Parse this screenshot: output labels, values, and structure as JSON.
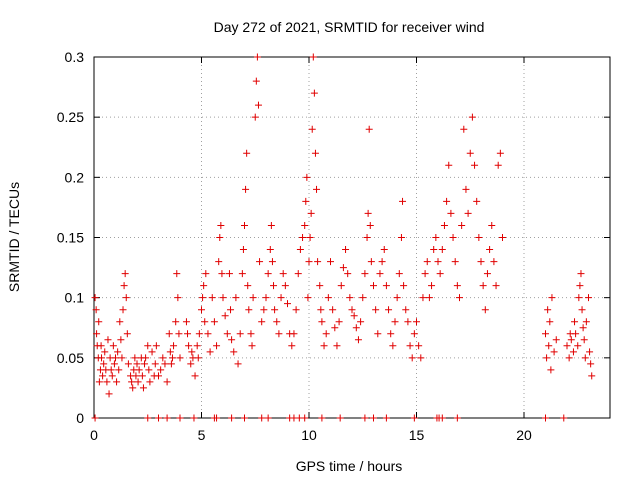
{
  "chart_data": {
    "type": "scatter",
    "title": "Day 272 of 2021, SRMTID for receiver wind",
    "xlabel": "GPS time / hours",
    "ylabel": "SRMTID / TECUs",
    "xlim": [
      0,
      24
    ],
    "ylim": [
      0,
      0.3
    ],
    "x_ticks": [
      0,
      5,
      10,
      15,
      20
    ],
    "x_tick_labels": [
      "0",
      "5",
      "10",
      "15",
      "20"
    ],
    "y_ticks": [
      0,
      0.05,
      0.1,
      0.15,
      0.2,
      0.25,
      0.3
    ],
    "y_tick_labels": [
      "0",
      "0.05",
      "0.1",
      "0.15",
      "0.2",
      "0.25",
      "0.3"
    ],
    "grid": true,
    "marker": "+",
    "color": "#e00000",
    "series": [
      {
        "name": "SRMTID",
        "points": [
          [
            0.05,
            0.1
          ],
          [
            0.1,
            0.09
          ],
          [
            0.12,
            0.07
          ],
          [
            0.15,
            0.06
          ],
          [
            0.2,
            0.05
          ],
          [
            0.22,
            0.08
          ],
          [
            0.25,
            0.03
          ],
          [
            0.3,
            0.04
          ],
          [
            0.33,
            0.06
          ],
          [
            0.35,
            0.05
          ],
          [
            0.4,
            0.035
          ],
          [
            0.45,
            0.045
          ],
          [
            0.5,
            0.055
          ],
          [
            0.55,
            0.04
          ],
          [
            0.6,
            0.03
          ],
          [
            0.65,
            0.065
          ],
          [
            0.7,
            0.02
          ],
          [
            0.75,
            0.05
          ],
          [
            0.8,
            0.04
          ],
          [
            0.85,
            0.035
          ],
          [
            0.9,
            0.06
          ],
          [
            0.95,
            0.045
          ],
          [
            1.0,
            0.05
          ],
          [
            1.05,
            0.03
          ],
          [
            1.1,
            0.055
          ],
          [
            1.15,
            0.04
          ],
          [
            1.2,
            0.08
          ],
          [
            1.25,
            0.065
          ],
          [
            1.3,
            0.05
          ],
          [
            1.35,
            0.09
          ],
          [
            1.4,
            0.11
          ],
          [
            1.45,
            0.12
          ],
          [
            1.5,
            0.1
          ],
          [
            1.55,
            0.07
          ],
          [
            1.6,
            0.045
          ],
          [
            1.7,
            0.035
          ],
          [
            1.75,
            0.03
          ],
          [
            1.8,
            0.025
          ],
          [
            1.85,
            0.04
          ],
          [
            1.9,
            0.05
          ],
          [
            1.95,
            0.035
          ],
          [
            2.0,
            0.045
          ],
          [
            2.05,
            0.03
          ],
          [
            2.1,
            0.04
          ],
          [
            2.2,
            0.05
          ],
          [
            2.25,
            0.035
          ],
          [
            2.3,
            0.025
          ],
          [
            2.35,
            0.045
          ],
          [
            2.4,
            0.05
          ],
          [
            2.5,
            0.06
          ],
          [
            2.55,
            0.04
          ],
          [
            2.6,
            0.03
          ],
          [
            2.7,
            0.055
          ],
          [
            2.8,
            0.035
          ],
          [
            2.85,
            0.045
          ],
          [
            2.9,
            0.06
          ],
          [
            3.0,
            0.035
          ],
          [
            3.1,
            0.04
          ],
          [
            3.2,
            0.05
          ],
          [
            3.3,
            0.045
          ],
          [
            3.4,
            0.03
          ],
          [
            3.5,
            0.07
          ],
          [
            3.55,
            0.055
          ],
          [
            3.6,
            0.045
          ],
          [
            3.65,
            0.05
          ],
          [
            3.7,
            0.06
          ],
          [
            3.8,
            0.08
          ],
          [
            3.85,
            0.12
          ],
          [
            3.9,
            0.1
          ],
          [
            3.95,
            0.07
          ],
          [
            4.0,
            0.05
          ],
          [
            4.3,
            0.08
          ],
          [
            4.35,
            0.07
          ],
          [
            4.4,
            0.06
          ],
          [
            4.5,
            0.045
          ],
          [
            4.55,
            0.055
          ],
          [
            4.6,
            0.05
          ],
          [
            4.7,
            0.035
          ],
          [
            4.8,
            0.06
          ],
          [
            4.85,
            0.05
          ],
          [
            4.9,
            0.07
          ],
          [
            5.0,
            0.09
          ],
          [
            5.05,
            0.1
          ],
          [
            5.1,
            0.11
          ],
          [
            5.15,
            0.08
          ],
          [
            5.2,
            0.12
          ],
          [
            5.3,
            0.07
          ],
          [
            5.4,
            0.055
          ],
          [
            5.5,
            0.1
          ],
          [
            5.6,
            0.08
          ],
          [
            5.7,
            0.06
          ],
          [
            5.8,
            0.13
          ],
          [
            5.85,
            0.15
          ],
          [
            5.9,
            0.16
          ],
          [
            5.95,
            0.12
          ],
          [
            6.0,
            0.1
          ],
          [
            6.1,
            0.085
          ],
          [
            6.2,
            0.07
          ],
          [
            6.3,
            0.12
          ],
          [
            6.35,
            0.09
          ],
          [
            6.4,
            0.065
          ],
          [
            6.5,
            0.055
          ],
          [
            6.6,
            0.1
          ],
          [
            6.7,
            0.045
          ],
          [
            6.8,
            0.07
          ],
          [
            6.9,
            0.12
          ],
          [
            6.95,
            0.14
          ],
          [
            7.0,
            0.16
          ],
          [
            7.05,
            0.19
          ],
          [
            7.1,
            0.22
          ],
          [
            7.15,
            0.11
          ],
          [
            7.2,
            0.09
          ],
          [
            7.3,
            0.07
          ],
          [
            7.35,
            0.06
          ],
          [
            7.4,
            0.1
          ],
          [
            7.5,
            0.25
          ],
          [
            7.55,
            0.28
          ],
          [
            7.6,
            0.3
          ],
          [
            7.65,
            0.26
          ],
          [
            7.7,
            0.13
          ],
          [
            7.8,
            0.08
          ],
          [
            7.9,
            0.09
          ],
          [
            8.0,
            0.1
          ],
          [
            8.1,
            0.12
          ],
          [
            8.2,
            0.14
          ],
          [
            8.25,
            0.16
          ],
          [
            8.3,
            0.13
          ],
          [
            8.35,
            0.11
          ],
          [
            8.4,
            0.09
          ],
          [
            8.5,
            0.08
          ],
          [
            8.6,
            0.07
          ],
          [
            8.7,
            0.1
          ],
          [
            8.8,
            0.12
          ],
          [
            8.9,
            0.11
          ],
          [
            9.0,
            0.095
          ],
          [
            9.1,
            0.07
          ],
          [
            9.2,
            0.06
          ],
          [
            9.3,
            0.07
          ],
          [
            9.4,
            0.09
          ],
          [
            9.5,
            0.12
          ],
          [
            9.6,
            0.14
          ],
          [
            9.7,
            0.15
          ],
          [
            9.8,
            0.16
          ],
          [
            9.85,
            0.18
          ],
          [
            9.9,
            0.2
          ],
          [
            9.95,
            0.1
          ],
          [
            10.0,
            0.13
          ],
          [
            10.05,
            0.15
          ],
          [
            10.1,
            0.17
          ],
          [
            10.15,
            0.24
          ],
          [
            10.2,
            0.3
          ],
          [
            10.25,
            0.27
          ],
          [
            10.3,
            0.22
          ],
          [
            10.35,
            0.19
          ],
          [
            10.4,
            0.13
          ],
          [
            10.5,
            0.11
          ],
          [
            10.55,
            0.09
          ],
          [
            10.6,
            0.08
          ],
          [
            10.7,
            0.06
          ],
          [
            10.8,
            0.07
          ],
          [
            10.9,
            0.1
          ],
          [
            11.0,
            0.13
          ],
          [
            11.1,
            0.09
          ],
          [
            11.2,
            0.075
          ],
          [
            11.3,
            0.06
          ],
          [
            11.4,
            0.08
          ],
          [
            11.5,
            0.11
          ],
          [
            11.6,
            0.125
          ],
          [
            11.7,
            0.14
          ],
          [
            11.8,
            0.12
          ],
          [
            11.9,
            0.1
          ],
          [
            12.0,
            0.09
          ],
          [
            12.1,
            0.085
          ],
          [
            12.2,
            0.075
          ],
          [
            12.3,
            0.065
          ],
          [
            12.4,
            0.08
          ],
          [
            12.5,
            0.1
          ],
          [
            12.6,
            0.12
          ],
          [
            12.7,
            0.15
          ],
          [
            12.75,
            0.17
          ],
          [
            12.8,
            0.24
          ],
          [
            12.85,
            0.16
          ],
          [
            12.9,
            0.13
          ],
          [
            13.0,
            0.11
          ],
          [
            13.1,
            0.09
          ],
          [
            13.2,
            0.07
          ],
          [
            13.3,
            0.12
          ],
          [
            13.4,
            0.13
          ],
          [
            13.5,
            0.14
          ],
          [
            13.6,
            0.11
          ],
          [
            13.7,
            0.09
          ],
          [
            13.8,
            0.07
          ],
          [
            13.9,
            0.06
          ],
          [
            14.0,
            0.08
          ],
          [
            14.1,
            0.1
          ],
          [
            14.2,
            0.12
          ],
          [
            14.3,
            0.15
          ],
          [
            14.35,
            0.18
          ],
          [
            14.4,
            0.11
          ],
          [
            14.5,
            0.09
          ],
          [
            14.6,
            0.08
          ],
          [
            14.7,
            0.06
          ],
          [
            14.8,
            0.05
          ],
          [
            14.9,
            0.07
          ],
          [
            15.0,
            0.08
          ],
          [
            15.1,
            0.06
          ],
          [
            15.2,
            0.05
          ],
          [
            15.3,
            0.1
          ],
          [
            15.4,
            0.12
          ],
          [
            15.5,
            0.13
          ],
          [
            15.6,
            0.1
          ],
          [
            15.7,
            0.11
          ],
          [
            15.8,
            0.14
          ],
          [
            15.9,
            0.15
          ],
          [
            16.0,
            0.13
          ],
          [
            16.1,
            0.12
          ],
          [
            16.2,
            0.14
          ],
          [
            16.3,
            0.16
          ],
          [
            16.4,
            0.18
          ],
          [
            16.5,
            0.21
          ],
          [
            16.6,
            0.17
          ],
          [
            16.7,
            0.15
          ],
          [
            16.8,
            0.13
          ],
          [
            16.9,
            0.11
          ],
          [
            17.0,
            0.1
          ],
          [
            17.1,
            0.16
          ],
          [
            17.2,
            0.24
          ],
          [
            17.3,
            0.19
          ],
          [
            17.4,
            0.17
          ],
          [
            17.5,
            0.22
          ],
          [
            17.6,
            0.25
          ],
          [
            17.7,
            0.21
          ],
          [
            17.8,
            0.18
          ],
          [
            17.9,
            0.15
          ],
          [
            18.0,
            0.13
          ],
          [
            18.1,
            0.11
          ],
          [
            18.2,
            0.09
          ],
          [
            18.3,
            0.12
          ],
          [
            18.4,
            0.14
          ],
          [
            18.5,
            0.16
          ],
          [
            18.6,
            0.13
          ],
          [
            18.7,
            0.11
          ],
          [
            18.8,
            0.21
          ],
          [
            18.9,
            0.22
          ],
          [
            19.0,
            0.15
          ],
          [
            21.0,
            0.07
          ],
          [
            21.05,
            0.05
          ],
          [
            21.1,
            0.09
          ],
          [
            21.15,
            0.06
          ],
          [
            21.2,
            0.08
          ],
          [
            21.25,
            0.04
          ],
          [
            21.3,
            0.1
          ],
          [
            21.4,
            0.055
          ],
          [
            21.5,
            0.065
          ],
          [
            22.0,
            0.06
          ],
          [
            22.1,
            0.05
          ],
          [
            22.15,
            0.07
          ],
          [
            22.2,
            0.065
          ],
          [
            22.3,
            0.055
          ],
          [
            22.35,
            0.08
          ],
          [
            22.4,
            0.07
          ],
          [
            22.5,
            0.06
          ],
          [
            22.55,
            0.1
          ],
          [
            22.6,
            0.11
          ],
          [
            22.65,
            0.12
          ],
          [
            22.7,
            0.09
          ],
          [
            22.75,
            0.075
          ],
          [
            22.8,
            0.065
          ],
          [
            22.85,
            0.05
          ],
          [
            22.9,
            0.08
          ],
          [
            23.0,
            0.1
          ],
          [
            23.05,
            0.055
          ],
          [
            23.1,
            0.045
          ],
          [
            23.15,
            0.035
          ]
        ]
      },
      {
        "name": "zero-baseline",
        "points": [
          [
            0.05,
            0
          ],
          [
            2.5,
            0
          ],
          [
            3.0,
            0
          ],
          [
            3.4,
            0
          ],
          [
            4.0,
            0
          ],
          [
            4.65,
            0
          ],
          [
            5.6,
            0
          ],
          [
            5.7,
            0
          ],
          [
            6.4,
            0
          ],
          [
            7.0,
            0
          ],
          [
            7.8,
            0
          ],
          [
            8.1,
            0
          ],
          [
            9.1,
            0
          ],
          [
            9.3,
            0
          ],
          [
            9.55,
            0
          ],
          [
            9.8,
            0
          ],
          [
            10.6,
            0
          ],
          [
            11.45,
            0
          ],
          [
            12.6,
            0
          ],
          [
            13.0,
            0
          ],
          [
            13.6,
            0
          ],
          [
            14.9,
            0
          ],
          [
            15.95,
            0
          ],
          [
            16.05,
            0
          ],
          [
            16.2,
            0
          ],
          [
            16.9,
            0
          ],
          [
            21.0,
            0
          ],
          [
            21.85,
            0
          ]
        ]
      }
    ]
  }
}
